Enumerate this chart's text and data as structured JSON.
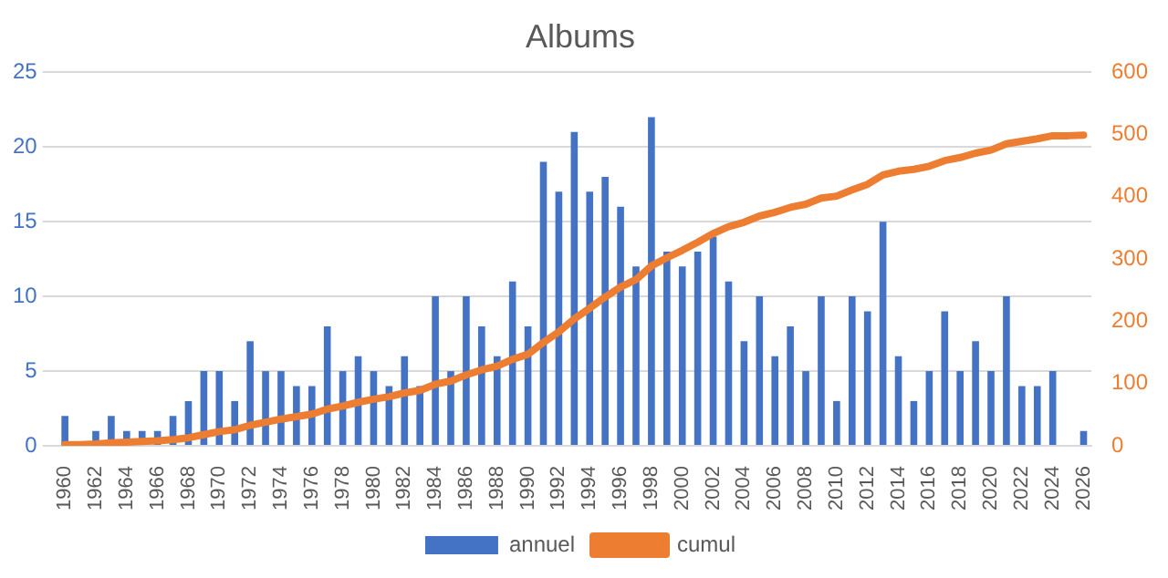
{
  "chart_data": {
    "type": "bar",
    "title": "Albums",
    "categories": [
      "1960",
      null,
      "1962",
      null,
      "1964",
      null,
      "1966",
      null,
      "1968",
      null,
      "1970",
      null,
      "1972",
      null,
      "1974",
      null,
      "1976",
      null,
      "1978",
      null,
      "1980",
      null,
      "1982",
      null,
      "1984",
      null,
      "1986",
      null,
      "1988",
      null,
      "1990",
      null,
      "1992",
      null,
      "1994",
      null,
      "1996",
      null,
      "1998",
      null,
      "2000",
      null,
      "2002",
      null,
      "2004",
      null,
      "2006",
      null,
      "2008",
      null,
      "2010",
      null,
      "2012",
      null,
      "2014",
      null,
      "2016",
      null,
      "2018",
      null,
      "2020",
      null,
      "2022",
      null,
      "2024",
      null,
      "2026"
    ],
    "series": [
      {
        "name": "annuel",
        "color": "#4472c4",
        "values": [
          2,
          0,
          1,
          2,
          1,
          1,
          1,
          2,
          3,
          5,
          5,
          3,
          7,
          5,
          5,
          4,
          4,
          8,
          5,
          6,
          5,
          4,
          6,
          4,
          10,
          5,
          10,
          8,
          6,
          11,
          8,
          19,
          17,
          21,
          17,
          18,
          16,
          12,
          22,
          13,
          12,
          13,
          14,
          11,
          7,
          10,
          6,
          8,
          5,
          10,
          3,
          10,
          9,
          15,
          6,
          3,
          5,
          9,
          5,
          7,
          5,
          10,
          4,
          4,
          5,
          0,
          1
        ]
      },
      {
        "name": "cumul",
        "type": "line",
        "axis": "y2",
        "color": "#ed7d31",
        "values": [
          2,
          2,
          3,
          5,
          6,
          7,
          8,
          10,
          13,
          18,
          23,
          26,
          33,
          38,
          43,
          47,
          51,
          59,
          64,
          70,
          75,
          79,
          85,
          89,
          99,
          104,
          114,
          122,
          128,
          139,
          147,
          166,
          183,
          204,
          221,
          239,
          255,
          267,
          289,
          302,
          314,
          327,
          341,
          352,
          359,
          369,
          375,
          383,
          388,
          398,
          401,
          411,
          420,
          435,
          441,
          444,
          449,
          458,
          463,
          470,
          475,
          485,
          489,
          493,
          498,
          498,
          499
        ]
      }
    ],
    "ylim": [
      0,
      25
    ],
    "yticks": [
      0,
      5,
      10,
      15,
      20,
      25
    ],
    "y2lim": [
      0,
      600
    ],
    "y2ticks": [
      0,
      100,
      200,
      300,
      400,
      500,
      600
    ],
    "grid": "y",
    "legend": "bottom",
    "marker": "none"
  }
}
